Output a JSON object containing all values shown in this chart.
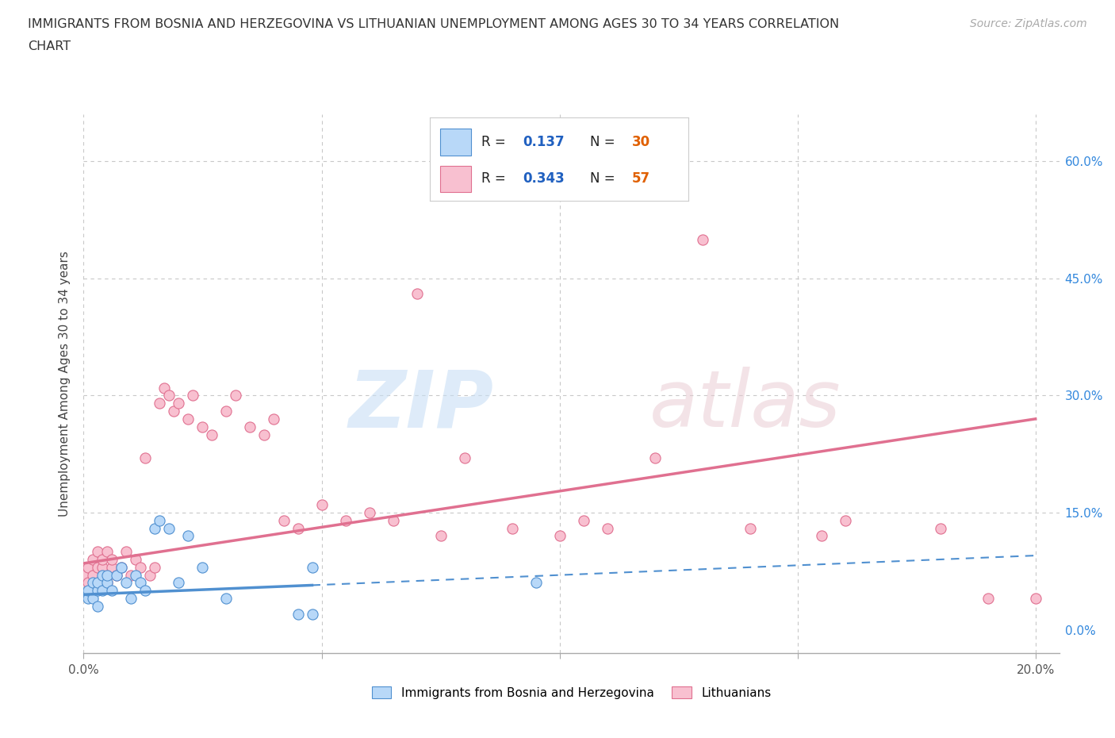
{
  "title_line1": "IMMIGRANTS FROM BOSNIA AND HERZEGOVINA VS LITHUANIAN UNEMPLOYMENT AMONG AGES 30 TO 34 YEARS CORRELATION",
  "title_line2": "CHART",
  "source": "Source: ZipAtlas.com",
  "ylabel": "Unemployment Among Ages 30 to 34 years",
  "xlim": [
    0.0,
    0.205
  ],
  "ylim": [
    -0.03,
    0.66
  ],
  "x_ticks": [
    0.0,
    0.05,
    0.1,
    0.15,
    0.2
  ],
  "x_tick_labels": [
    "0.0%",
    "",
    "",
    "",
    "20.0%"
  ],
  "y_ticks": [
    0.0,
    0.15,
    0.3,
    0.45,
    0.6
  ],
  "y_tick_labels": [
    "0.0%",
    "15.0%",
    "30.0%",
    "45.0%",
    "60.0%"
  ],
  "bosnia_color": "#b8d8f8",
  "bosnia_edge": "#5090d0",
  "lithuanian_color": "#f8c0d0",
  "lithuanian_edge": "#e07090",
  "bosnia_R": 0.137,
  "bosnia_N": 30,
  "lithuanian_R": 0.343,
  "lithuanian_N": 57,
  "bosnia_scatter_x": [
    0.001,
    0.001,
    0.002,
    0.002,
    0.003,
    0.003,
    0.003,
    0.004,
    0.004,
    0.005,
    0.005,
    0.006,
    0.007,
    0.008,
    0.009,
    0.01,
    0.011,
    0.012,
    0.013,
    0.015,
    0.016,
    0.018,
    0.02,
    0.022,
    0.025,
    0.03,
    0.045,
    0.048,
    0.048,
    0.095
  ],
  "bosnia_scatter_y": [
    0.04,
    0.05,
    0.04,
    0.06,
    0.05,
    0.03,
    0.06,
    0.07,
    0.05,
    0.06,
    0.07,
    0.05,
    0.07,
    0.08,
    0.06,
    0.04,
    0.07,
    0.06,
    0.05,
    0.13,
    0.14,
    0.13,
    0.06,
    0.12,
    0.08,
    0.04,
    0.02,
    0.02,
    0.08,
    0.06
  ],
  "lithuanian_scatter_x": [
    0.0,
    0.001,
    0.001,
    0.002,
    0.002,
    0.003,
    0.003,
    0.004,
    0.004,
    0.005,
    0.005,
    0.006,
    0.006,
    0.007,
    0.008,
    0.009,
    0.01,
    0.011,
    0.012,
    0.013,
    0.014,
    0.015,
    0.016,
    0.017,
    0.018,
    0.019,
    0.02,
    0.022,
    0.023,
    0.025,
    0.027,
    0.03,
    0.032,
    0.035,
    0.038,
    0.04,
    0.042,
    0.045,
    0.05,
    0.055,
    0.06,
    0.065,
    0.07,
    0.075,
    0.08,
    0.09,
    0.1,
    0.105,
    0.11,
    0.12,
    0.13,
    0.14,
    0.155,
    0.16,
    0.18,
    0.19,
    0.2
  ],
  "lithuanian_scatter_y": [
    0.07,
    0.06,
    0.08,
    0.07,
    0.09,
    0.08,
    0.1,
    0.08,
    0.09,
    0.06,
    0.1,
    0.08,
    0.09,
    0.07,
    0.08,
    0.1,
    0.07,
    0.09,
    0.08,
    0.22,
    0.07,
    0.08,
    0.29,
    0.31,
    0.3,
    0.28,
    0.29,
    0.27,
    0.3,
    0.26,
    0.25,
    0.28,
    0.3,
    0.26,
    0.25,
    0.27,
    0.14,
    0.13,
    0.16,
    0.14,
    0.15,
    0.14,
    0.43,
    0.12,
    0.22,
    0.13,
    0.12,
    0.14,
    0.13,
    0.22,
    0.5,
    0.13,
    0.12,
    0.14,
    0.13,
    0.04,
    0.04
  ],
  "bosnia_trend_x0": 0.0,
  "bosnia_trend_x1": 0.2,
  "bosnia_trend_y0": 0.045,
  "bosnia_trend_y1": 0.095,
  "bosnia_trend_solid_end_x": 0.048,
  "lithuanian_trend_x0": 0.0,
  "lithuanian_trend_x1": 0.2,
  "lithuanian_trend_y0": 0.085,
  "lithuanian_trend_y1": 0.27,
  "legend_R_color": "#2060c0",
  "legend_N_color": "#e06000",
  "grid_color": "#d8d8d8",
  "grid_dot_color": "#c8c8c8",
  "watermark_zip_color": "#c8dff0",
  "watermark_atlas_color": "#d8c8c8",
  "background_color": "#ffffff"
}
